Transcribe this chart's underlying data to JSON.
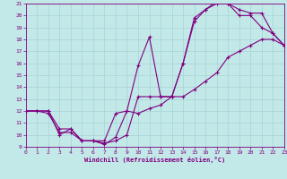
{
  "xlabel": "Windchill (Refroidissement éolien,°C)",
  "bg_color": "#c2e8e8",
  "line_color": "#800080",
  "grid_color": "#a8d4d4",
  "xlim": [
    0,
    23
  ],
  "ylim": [
    9,
    21
  ],
  "xticks": [
    0,
    1,
    2,
    3,
    4,
    5,
    6,
    7,
    8,
    9,
    10,
    11,
    12,
    13,
    14,
    15,
    16,
    17,
    18,
    19,
    20,
    21,
    22,
    23
  ],
  "yticks": [
    9,
    10,
    11,
    12,
    13,
    14,
    15,
    16,
    17,
    18,
    19,
    20,
    21
  ],
  "series1_x": [
    0,
    1,
    2,
    3,
    4,
    5,
    6,
    7,
    8,
    9,
    10,
    11,
    12,
    13,
    14,
    15,
    16,
    17,
    18,
    19,
    20,
    21,
    22,
    23
  ],
  "series1_y": [
    12,
    12,
    11.8,
    10.2,
    10.2,
    9.5,
    9.5,
    9.3,
    9.5,
    10.0,
    13.2,
    13.2,
    13.2,
    13.2,
    16.0,
    19.5,
    20.5,
    21.0,
    21.0,
    20.0,
    20.0,
    19.0,
    18.5,
    17.5
  ],
  "series2_x": [
    0,
    1,
    2,
    3,
    4,
    5,
    6,
    7,
    8,
    9,
    10,
    11,
    12,
    13,
    14,
    15,
    16,
    17,
    18,
    19,
    20,
    21,
    22,
    23
  ],
  "series2_y": [
    12,
    12,
    12,
    10,
    10.5,
    9.5,
    9.5,
    9.2,
    9.8,
    12.0,
    11.8,
    12.2,
    12.5,
    13.2,
    13.2,
    13.8,
    14.5,
    15.2,
    16.5,
    17.0,
    17.5,
    18.0,
    18.0,
    17.5
  ],
  "series3_x": [
    0,
    2,
    3,
    4,
    5,
    6,
    7,
    8,
    9,
    10,
    11,
    12,
    13,
    14,
    15,
    16,
    17,
    18,
    19,
    20,
    21,
    22,
    23
  ],
  "series3_y": [
    12,
    12,
    10.5,
    10.5,
    9.5,
    9.5,
    9.5,
    11.8,
    12.0,
    15.8,
    18.2,
    13.2,
    13.2,
    16.0,
    19.8,
    20.5,
    21.2,
    21.0,
    20.5,
    20.2,
    20.2,
    18.5,
    17.5
  ]
}
